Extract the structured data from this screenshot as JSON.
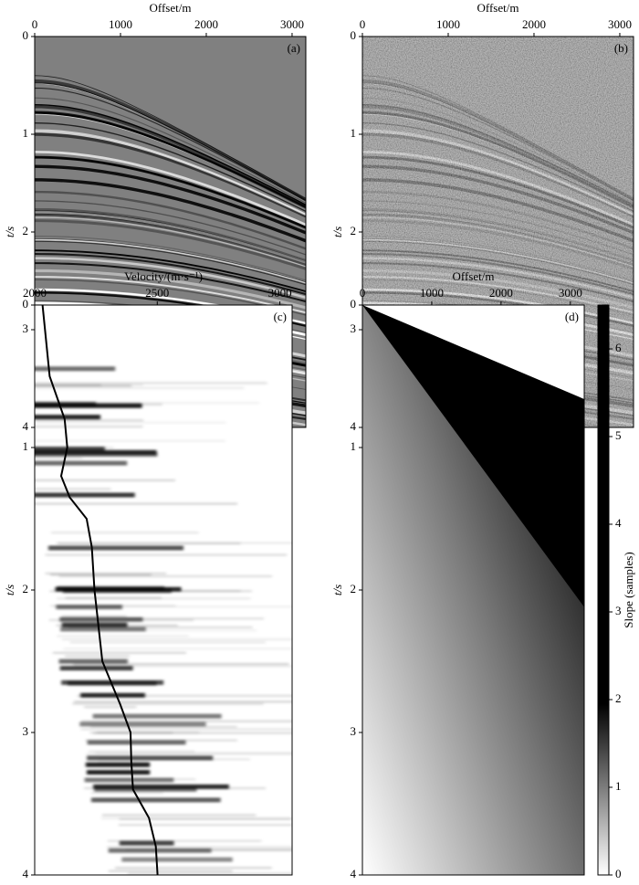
{
  "chart_data": [
    {
      "type": "heatmap",
      "panel_label": "(a)",
      "xlabel": "Offset/m",
      "ylabel": "t/s",
      "xlim": [
        0,
        3160
      ],
      "xticks": [
        0,
        1000,
        2000,
        3000
      ],
      "ylim": [
        0,
        4
      ],
      "yticks": [
        0,
        1,
        2,
        3,
        4
      ],
      "noisy": false
    },
    {
      "type": "heatmap",
      "panel_label": "(b)",
      "xlabel": "Offset/m",
      "ylabel": "t/s",
      "xlim": [
        0,
        3160
      ],
      "xticks": [
        0,
        1000,
        2000,
        3000
      ],
      "ylim": [
        0,
        4
      ],
      "yticks": [
        0,
        1,
        2,
        3,
        4
      ],
      "noisy": true
    },
    {
      "type": "line",
      "panel_label": "(c)",
      "xlabel": "Velocity/(m·s⁻¹)",
      "ylabel": "t/s",
      "xlim": [
        2000,
        3050
      ],
      "xticks": [
        2000,
        2500,
        3000
      ],
      "ylim": [
        0,
        4
      ],
      "yticks": [
        0,
        1,
        2,
        3,
        4
      ],
      "x": [
        0,
        0.5,
        0.8,
        1.0,
        1.2,
        1.35,
        1.5,
        1.7,
        2.0,
        2.5,
        2.8,
        3.0,
        3.2,
        3.4,
        3.6,
        3.8,
        4.0
      ],
      "series": [
        {
          "color": "#000000",
          "values": [
            2032,
            2061,
            2122,
            2133,
            2108,
            2143,
            2212,
            2233,
            2244,
            2276,
            2348,
            2391,
            2394,
            2401,
            2466,
            2494,
            2501
          ]
        }
      ]
    },
    {
      "type": "heatmap",
      "panel_label": "(d)",
      "xlabel": "Offset/m",
      "ylabel": "t/s",
      "xlim": [
        0,
        3200
      ],
      "xticks": [
        0,
        1000,
        2000,
        3000
      ],
      "ylim": [
        0,
        4
      ],
      "yticks": [
        0,
        1,
        2,
        3,
        4
      ],
      "colorbar": {
        "label": "Slope (samples)",
        "lim": [
          0,
          6.5
        ],
        "ticks": [
          0,
          1,
          2,
          3,
          4,
          5,
          6
        ]
      }
    }
  ]
}
